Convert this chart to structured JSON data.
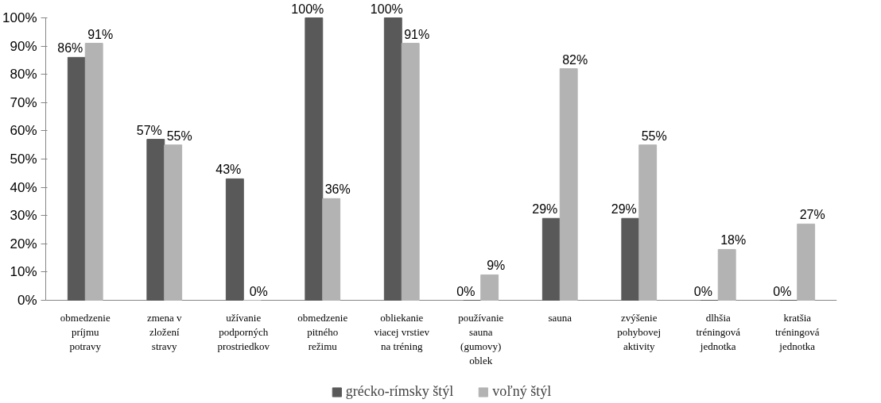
{
  "chart_data": {
    "type": "bar",
    "categories": [
      "obmedzenie\npríjmu\npotravy",
      "zmena v\nzložení\nstravy",
      "užívanie\npodporných\nprostriedkov",
      "obmedzenie\npitného\nrežimu",
      "obliekanie\nviacej vrstiev\nna tréning",
      "používanie\nsauna\n(gumovy)\noblek",
      "sauna",
      "zvýšenie\npohybovej\naktivity",
      "dlhšia\ntréningová\njednotka",
      "kratšia\ntréningová\njednotka"
    ],
    "series": [
      {
        "name": "grécko-rímsky štýl",
        "color": "#595959",
        "values": [
          86,
          57,
          43,
          100,
          100,
          0,
          29,
          29,
          0,
          0
        ],
        "value_labels": [
          "86%",
          "57%",
          "43%",
          "100%",
          "100%",
          "0%",
          "29%",
          "29%",
          "0%",
          "0%"
        ]
      },
      {
        "name": "voľný štýl",
        "color": "#b3b3b3",
        "values": [
          91,
          55,
          0,
          36,
          91,
          9,
          82,
          55,
          18,
          27
        ],
        "value_labels": [
          "91%",
          "55%",
          "0%",
          "36%",
          "91%",
          "9%",
          "82%",
          "55%",
          "18%",
          "27%"
        ]
      }
    ],
    "ylim": [
      0,
      100
    ],
    "yticks": [
      {
        "value": 0,
        "label": "0%"
      },
      {
        "value": 10,
        "label": "10%"
      },
      {
        "value": 20,
        "label": "20%"
      },
      {
        "value": 30,
        "label": "30%"
      },
      {
        "value": 40,
        "label": "40%"
      },
      {
        "value": 50,
        "label": "50%"
      },
      {
        "value": 60,
        "label": "60%"
      },
      {
        "value": 70,
        "label": "70%"
      },
      {
        "value": 80,
        "label": "80%"
      },
      {
        "value": 90,
        "label": "90%"
      },
      {
        "value": 100,
        "label": "100%"
      }
    ],
    "grid": false,
    "legend": "bottom"
  }
}
